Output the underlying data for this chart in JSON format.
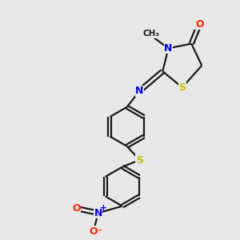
{
  "background_color": "#e8e8e8",
  "bond_color": "#1a1a1a",
  "atom_colors": {
    "O": "#ff2200",
    "N": "#0000ee",
    "S": "#ccbb00",
    "C": "#1a1a1a"
  },
  "lw": 1.6,
  "fs": 8.5
}
